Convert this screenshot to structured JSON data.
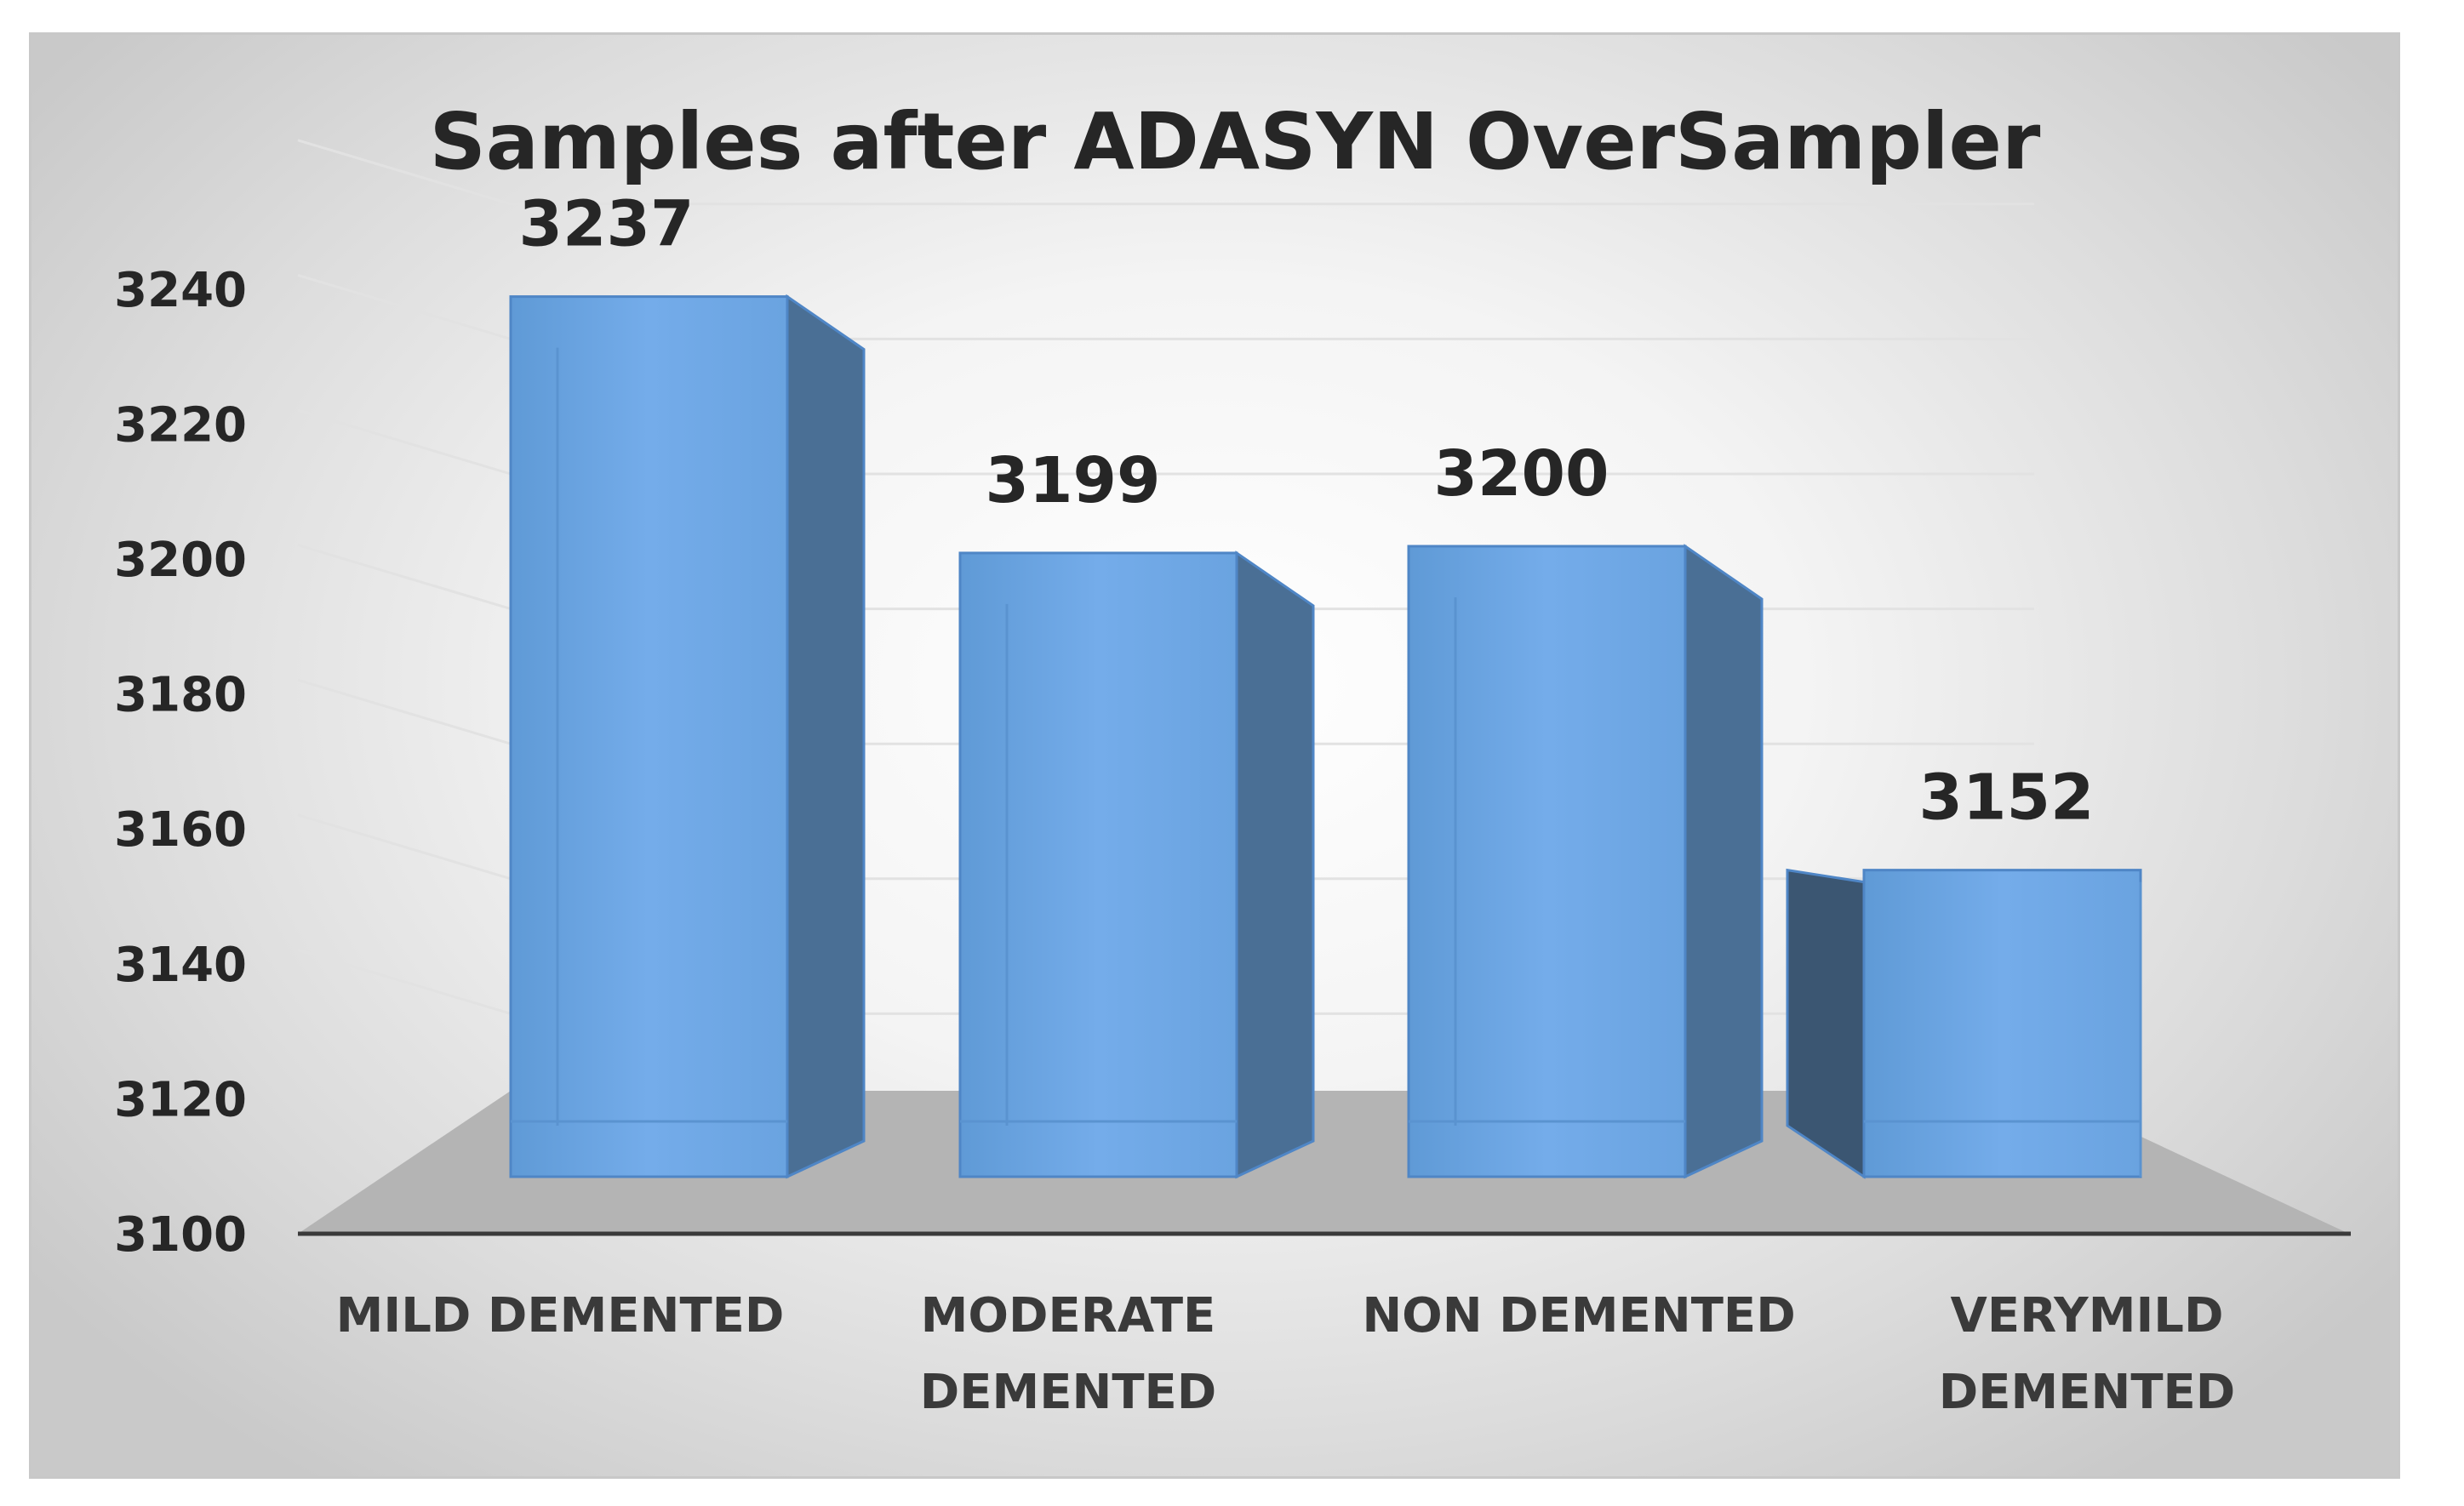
{
  "chart_data": {
    "type": "bar",
    "title": "Samples after ADASYN OverSampler",
    "xlabel": "",
    "ylabel": "",
    "categories": [
      "MILD DEMENTED",
      "MODERATE DEMENTED",
      "NON DEMENTED",
      "VERYMILD DEMENTED"
    ],
    "category_lines": [
      [
        "MILD DEMENTED"
      ],
      [
        "MODERATE",
        "DEMENTED"
      ],
      [
        "NON DEMENTED"
      ],
      [
        "VERYMILD",
        "DEMENTED"
      ]
    ],
    "values": [
      3237,
      3199,
      3200,
      3152
    ],
    "data_labels": [
      "3237",
      "3199",
      "3200",
      "3152"
    ],
    "ylim": [
      3100,
      3240
    ],
    "yticks": [
      3100,
      3120,
      3140,
      3160,
      3180,
      3200,
      3220,
      3240
    ],
    "grid": true,
    "style": "3d-column",
    "colors": {
      "bar_front": "#6fa8dc",
      "bar_side": "#4a6f95",
      "bar_edge": "#4f86c6",
      "floor": "#b4b4b4",
      "axis": "#3a3a3a"
    }
  }
}
